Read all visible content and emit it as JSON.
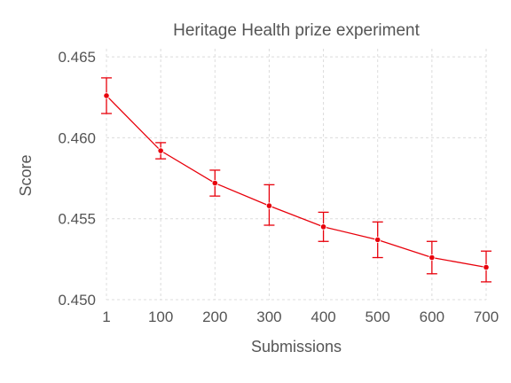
{
  "chart_data": {
    "type": "line",
    "title": "Heritage Health prize experiment",
    "xlabel": "Submissions",
    "ylabel": "Score",
    "x": [
      1,
      100,
      200,
      300,
      400,
      500,
      600,
      700
    ],
    "x_ticks": [
      1,
      100,
      200,
      300,
      400,
      500,
      600,
      700
    ],
    "ylim": [
      0.45,
      0.4655
    ],
    "y_ticks": [
      0.45,
      0.455,
      0.46,
      0.465
    ],
    "y_tick_labels": [
      "0.450",
      "0.455",
      "0.460",
      "0.465"
    ],
    "grid": true,
    "series": [
      {
        "values": [
          0.4626,
          0.4592,
          0.4572,
          0.4558,
          0.4545,
          0.4537,
          0.4526,
          0.452
        ],
        "error_low": [
          0.4615,
          0.4587,
          0.4564,
          0.4546,
          0.4536,
          0.4526,
          0.4516,
          0.4511
        ],
        "error_high": [
          0.4637,
          0.4597,
          0.458,
          0.4571,
          0.4554,
          0.4548,
          0.4536,
          0.453
        ],
        "color": "#e8000b"
      }
    ]
  }
}
